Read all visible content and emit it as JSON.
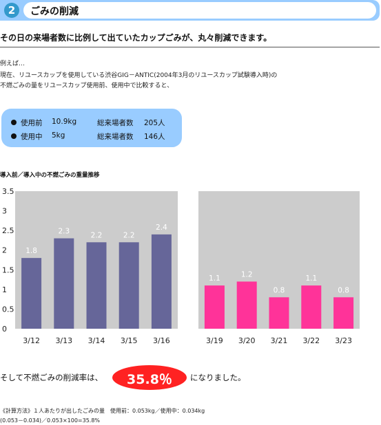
{
  "header": {
    "number": "2",
    "title": "ごみの削減"
  },
  "headline": "その日の来場者数に比例して出ていたカップごみが、丸々削減できます。",
  "intro": [
    "例えば…",
    "現在、リユースカップを使用している渋谷GIG－ANTIC(2004年3月のリユースカップ試験導入時)の",
    "不燃ごみの量をリユースカップ使用前、使用中で比較すると、"
  ],
  "stats": [
    {
      "label": "使用前",
      "weight": "10.9kg",
      "visitors_label": "総来場者数",
      "visitors": "205人"
    },
    {
      "label": "使用中",
      "weight": "5kg",
      "visitors_label": "総来場者数",
      "visitors": "146人"
    }
  ],
  "chart_data": {
    "type": "bar",
    "title": "導入前／導入中の不燃ごみの重量推移",
    "ylim": [
      0,
      3.5
    ],
    "yticks": [
      "0",
      "0.5",
      "1",
      "1.5",
      "2",
      "2.5",
      "3",
      "3.5"
    ],
    "grid": false,
    "panels": [
      {
        "categories": [
          "3/12",
          "3/13",
          "3/14",
          "3/15",
          "3/16"
        ],
        "values": [
          1.8,
          2.3,
          2.2,
          2.2,
          2.4
        ],
        "labels": [
          "1.8",
          "2.3",
          "2.2",
          "2.2",
          "2.4"
        ],
        "color": "#666699"
      },
      {
        "categories": [
          "3/19",
          "3/20",
          "3/21",
          "3/22",
          "3/23"
        ],
        "values": [
          1.1,
          1.2,
          0.8,
          1.1,
          0.8
        ],
        "labels": [
          "1.1",
          "1.2",
          "0.8",
          "1.1",
          "0.8"
        ],
        "color": "#ff3399"
      }
    ],
    "panel_bg": "#cccccc"
  },
  "result": {
    "prefix": "そして不燃ごみの削減率は、",
    "value": "35.8％",
    "suffix": "になりました。"
  },
  "footnote": [
    "《計算方法》１人あたりが出したごみの量　使用前：0.053kg／使用中：0.034kg",
    "(0.053－0.034)／0.053×100=35.8%"
  ]
}
